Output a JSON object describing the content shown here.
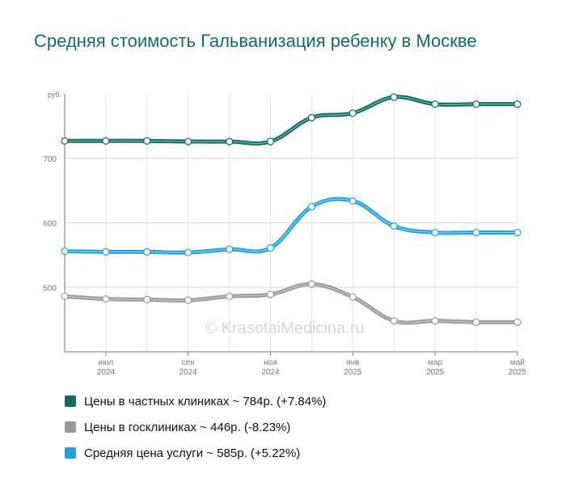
{
  "title": "Средняя стоимость Гальванизация ребенку в Москве",
  "watermark": "© KrasotaiMedicina.ru",
  "chart_data": {
    "type": "line",
    "ylabel": "руб.",
    "ylim": [
      400,
      800
    ],
    "yticks": [
      500,
      600,
      700
    ],
    "grid": true,
    "legend_position": "bottom",
    "x_ticks": [
      {
        "month": "июл",
        "year": "2024",
        "index": 1
      },
      {
        "month": "сен",
        "year": "2024",
        "index": 3
      },
      {
        "month": "ноя",
        "year": "2024",
        "index": 5
      },
      {
        "month": "янв",
        "year": "2025",
        "index": 7
      },
      {
        "month": "мар",
        "year": "2025",
        "index": 9
      },
      {
        "month": "май",
        "year": "2025",
        "index": 11
      }
    ],
    "series": [
      {
        "name": "Цены в частных клиниках ~ 784р. (+7.84%)",
        "color": "#0e6e62",
        "values": [
          727,
          727,
          727,
          726,
          726,
          726,
          763,
          770,
          795,
          784,
          784,
          784
        ]
      },
      {
        "name": "Цены в госклиниках ~ 446р. (-8.23%)",
        "color": "#9a9a9a",
        "values": [
          486,
          482,
          481,
          480,
          486,
          489,
          505,
          485,
          448,
          448,
          446,
          446
        ]
      },
      {
        "name": "Средняя цена услуги ~ 585р. (+5.22%)",
        "color": "#22a0e0",
        "values": [
          556,
          555,
          555,
          554,
          559,
          561,
          625,
          634,
          595,
          585,
          585,
          585
        ]
      }
    ]
  }
}
